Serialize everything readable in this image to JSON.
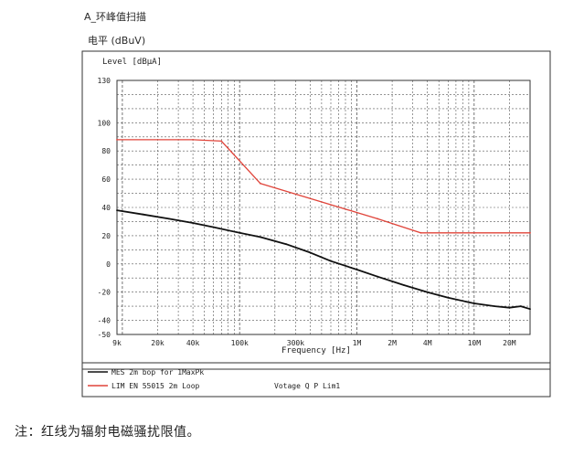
{
  "header": {
    "title": "A_环峰值扫描",
    "unit": "电平 (dBuV)"
  },
  "note": "注：红线为辐射电磁骚扰限值。",
  "chart_data": {
    "type": "line",
    "ylabel": "Level [dBµA]",
    "xlabel": "Frequency [Hz]",
    "xscale": "log",
    "xlim": [
      9000,
      30000000
    ],
    "ylim": [
      -50,
      130
    ],
    "grid": true,
    "legend_position": "bottom",
    "yticks": [
      130,
      100,
      80,
      60,
      40,
      20,
      0,
      -20,
      -40,
      -50
    ],
    "xticks": [
      {
        "value": 9000,
        "label": "9k"
      },
      {
        "value": 20000,
        "label": "20k"
      },
      {
        "value": 40000,
        "label": "40k"
      },
      {
        "value": 100000,
        "label": "100k"
      },
      {
        "value": 300000,
        "label": "300k"
      },
      {
        "value": 1000000,
        "label": "1M"
      },
      {
        "value": 2000000,
        "label": "2M"
      },
      {
        "value": 4000000,
        "label": "4M"
      },
      {
        "value": 10000000,
        "label": "10M"
      },
      {
        "value": 20000000,
        "label": "20M"
      }
    ],
    "series": [
      {
        "name": "MES 2m bop for 1MaxPk",
        "color": "#111111",
        "x": [
          9000,
          15000,
          25000,
          40000,
          60000,
          100000,
          150000,
          250000,
          400000,
          600000,
          1000000,
          1500000,
          2500000,
          4000000,
          6000000,
          10000000,
          15000000,
          20000000,
          25000000,
          30000000
        ],
        "y": [
          38,
          35,
          32,
          29,
          26,
          22,
          19,
          14,
          8,
          2,
          -4,
          -9,
          -15,
          -20,
          -24,
          -28,
          -30,
          -31,
          -30,
          -32
        ]
      },
      {
        "name": "LIM EN 55015 2m Loop",
        "color": "#e0443a",
        "x": [
          9000,
          40000,
          70000,
          150000,
          1500000,
          3500000,
          30000000
        ],
        "y": [
          88,
          88,
          87,
          57,
          32,
          22,
          22
        ]
      }
    ],
    "legend_extra": "Votage Q P Lim1"
  }
}
